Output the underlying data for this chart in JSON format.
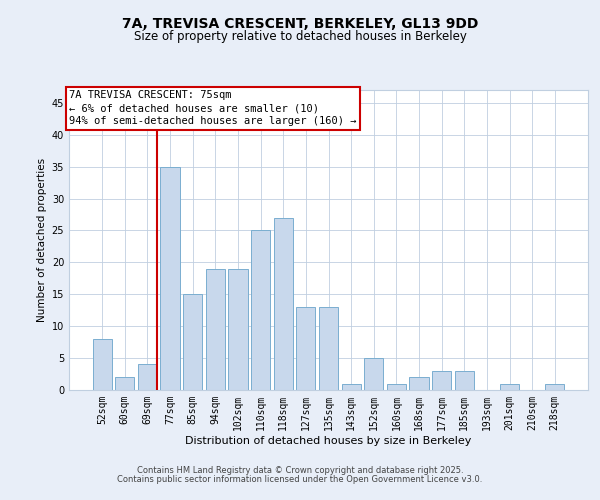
{
  "title": "7A, TREVISA CRESCENT, BERKELEY, GL13 9DD",
  "subtitle": "Size of property relative to detached houses in Berkeley",
  "xlabel": "Distribution of detached houses by size in Berkeley",
  "ylabel": "Number of detached properties",
  "categories": [
    "52sqm",
    "60sqm",
    "69sqm",
    "77sqm",
    "85sqm",
    "94sqm",
    "102sqm",
    "110sqm",
    "118sqm",
    "127sqm",
    "135sqm",
    "143sqm",
    "152sqm",
    "160sqm",
    "168sqm",
    "177sqm",
    "185sqm",
    "193sqm",
    "201sqm",
    "210sqm",
    "218sqm"
  ],
  "values": [
    8,
    2,
    4,
    35,
    15,
    19,
    19,
    25,
    27,
    13,
    13,
    1,
    5,
    1,
    2,
    3,
    3,
    0,
    1,
    0,
    1
  ],
  "bar_color": "#c8d8ec",
  "bar_edge_color": "#7aaed0",
  "highlight_color": "#cc0000",
  "annotation_text": "7A TREVISA CRESCENT: 75sqm\n← 6% of detached houses are smaller (10)\n94% of semi-detached houses are larger (160) →",
  "annotation_box_color": "#ffffff",
  "annotation_box_edge_color": "#cc0000",
  "ylim": [
    0,
    47
  ],
  "yticks": [
    0,
    5,
    10,
    15,
    20,
    25,
    30,
    35,
    40,
    45
  ],
  "background_color": "#e8eef8",
  "plot_bg_color": "#ffffff",
  "footer_line1": "Contains HM Land Registry data © Crown copyright and database right 2025.",
  "footer_line2": "Contains public sector information licensed under the Open Government Licence v3.0.",
  "title_fontsize": 10,
  "subtitle_fontsize": 8.5,
  "xlabel_fontsize": 8,
  "ylabel_fontsize": 7.5,
  "tick_fontsize": 7,
  "annotation_fontsize": 7.5,
  "footer_fontsize": 6
}
